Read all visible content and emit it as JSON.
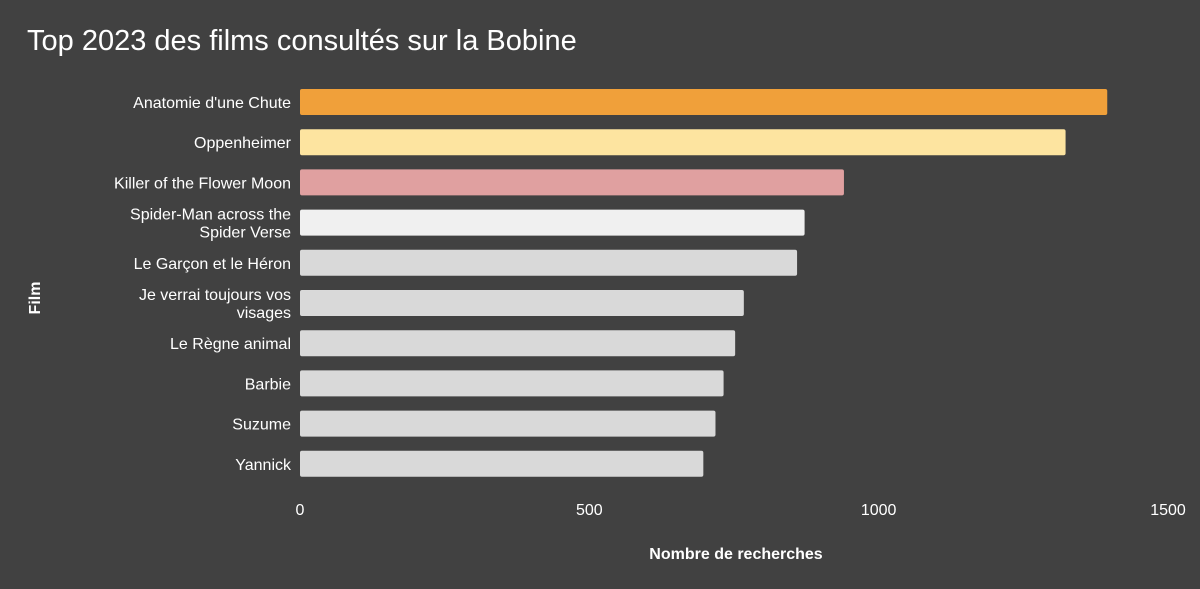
{
  "chart_data": {
    "type": "bar",
    "orientation": "horizontal",
    "title": "Top 2023 des films consultés sur la Bobine",
    "xlabel": "Nombre de recherches",
    "ylabel": "Film",
    "xlim": [
      0,
      1500
    ],
    "xticks": [
      "0",
      "500",
      "1000",
      "1500"
    ],
    "grid": false,
    "legend": "none",
    "categories": [
      [
        "Anatomie d'une Chute"
      ],
      [
        "Oppenheimer"
      ],
      [
        "Killer of the Flower Moon"
      ],
      [
        "Spider-Man across the",
        "Spider Verse"
      ],
      [
        "Le Garçon et le Héron"
      ],
      [
        "Je verrai toujours vos",
        "visages"
      ],
      [
        "Le Règne animal"
      ],
      [
        "Barbie"
      ],
      [
        "Suzume"
      ],
      [
        "Yannick"
      ]
    ],
    "values": [
      1395,
      1323,
      940,
      872,
      859,
      767,
      752,
      732,
      718,
      697
    ],
    "colors": [
      "#f0a03a",
      "#fde4a0",
      "#e0a0a0",
      "#f0f0f0",
      "#d9d9d9",
      "#d9d9d9",
      "#d9d9d9",
      "#d9d9d9",
      "#d9d9d9",
      "#d9d9d9"
    ]
  }
}
